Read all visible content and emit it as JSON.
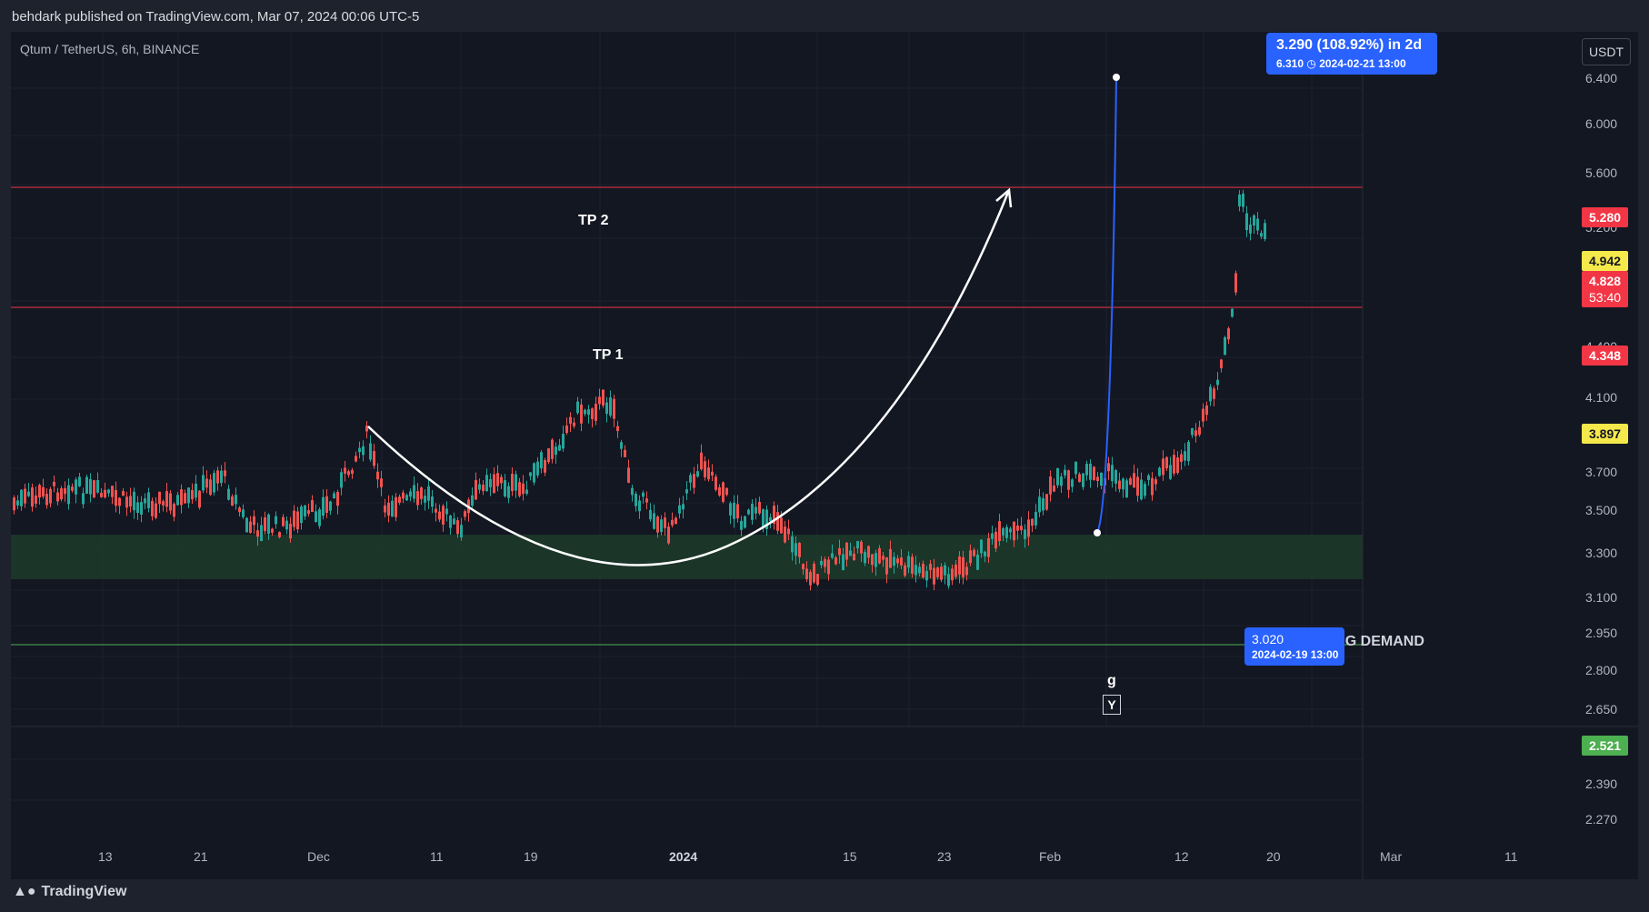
{
  "header": {
    "published_text": "behdark published on TradingView.com, Mar 07, 2024 00:06 UTC-5"
  },
  "symbol_line": "Qtum / TetherUS, 6h, BINANCE",
  "currency_button": "USDT",
  "levels": {
    "tp2": {
      "label": "TP 2",
      "price": "5.280"
    },
    "tp1": {
      "label": "TP 1",
      "price": "4.348"
    },
    "support": {
      "price": "2.521"
    }
  },
  "price_tags": {
    "yellow_high": "4.942",
    "last_price": "4.828",
    "countdown": "53:40",
    "yellow_low": "3.897"
  },
  "y_axis_ticks": [
    "6.400",
    "6.000",
    "5.600",
    "5.200",
    "4.400",
    "4.100",
    "3.700",
    "3.500",
    "3.300",
    "3.100",
    "2.950",
    "2.800",
    "2.650",
    "2.390",
    "2.270"
  ],
  "x_axis_ticks": [
    "13",
    "21",
    "Dec",
    "11",
    "19",
    "2024",
    "15",
    "23",
    "Feb",
    "12",
    "20",
    "Mar",
    "11"
  ],
  "measure": {
    "main": "3.290 (108.92%) in 2d",
    "detail_price": "6.310",
    "detail_date": "2024-02-21  13:00",
    "start_price": "3.020",
    "start_date": "2024-02-19 13:00"
  },
  "zone_label": "BUYING DEMAND",
  "annotations": {
    "g": "g",
    "y": "Y"
  },
  "footer": {
    "brand": "TradingView"
  },
  "colors": {
    "background": "#131722",
    "up": "#26a69a",
    "down": "#ef5350",
    "zone": "#1d3b2a",
    "tp_line": "#f23645",
    "support_line": "#4caf50",
    "measure": "#2962ff"
  }
}
